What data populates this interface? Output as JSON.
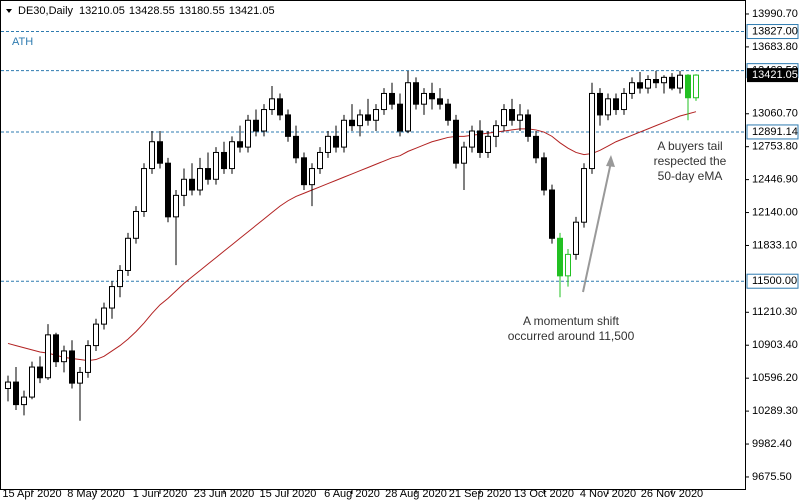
{
  "chart_data": {
    "type": "candlestick",
    "symbol": "DE30,Daily",
    "header_ohlc": [
      13210.05,
      13428.55,
      13180.55,
      13421.05
    ],
    "categories": [
      null,
      null,
      null,
      "15 Apr 2020",
      null,
      null,
      null,
      null,
      null,
      null,
      null,
      "8 May 2020",
      null,
      null,
      null,
      null,
      null,
      null,
      null,
      "1 Jun 2020",
      null,
      null,
      null,
      null,
      null,
      null,
      null,
      "23 Jun 2020",
      null,
      null,
      null,
      null,
      null,
      null,
      null,
      "15 Jul 2020",
      null,
      null,
      null,
      null,
      null,
      null,
      null,
      "6 Aug 2020",
      null,
      null,
      null,
      null,
      null,
      null,
      null,
      "28 Aug 2020",
      null,
      null,
      null,
      null,
      null,
      null,
      null,
      "21 Sep 2020",
      null,
      null,
      null,
      null,
      null,
      null,
      null,
      "13 Oct 2020",
      null,
      null,
      null,
      null,
      null,
      null,
      null,
      "4 Nov 2020",
      null,
      null,
      null,
      null,
      null,
      null,
      null,
      "26 Nov 2020",
      null,
      null,
      null
    ],
    "open": [
      10500,
      10560,
      10350,
      10420,
      10700,
      10600,
      11000,
      10750,
      10850,
      10550,
      10650,
      10900,
      11100,
      11250,
      11450,
      11600,
      11900,
      12150,
      12550,
      12800,
      12600,
      12100,
      12300,
      12450,
      12350,
      12550,
      12450,
      12700,
      12550,
      12800,
      12750,
      13000,
      12900,
      13100,
      13200,
      13050,
      12850,
      12650,
      12400,
      12550,
      12700,
      12850,
      12750,
      13000,
      12950,
      13050,
      13000,
      13100,
      13250,
      13150,
      12900,
      13350,
      13150,
      13250,
      13200,
      13150,
      13000,
      12600,
      12750,
      12900,
      12700,
      12850,
      12950,
      13100,
      13000,
      13050,
      12850,
      12650,
      12350,
      11900,
      11550,
      11750,
      12050,
      12550,
      13250,
      13050,
      13200,
      13100,
      13250,
      13350,
      13300,
      13380,
      13350,
      13400,
      13300,
      13420,
      13210.05
    ],
    "high": [
      10620,
      10700,
      10480,
      10750,
      10800,
      11100,
      11020,
      10900,
      10950,
      10700,
      10950,
      11150,
      11300,
      11500,
      11650,
      11950,
      12200,
      12600,
      12900,
      12900,
      12650,
      12350,
      12550,
      12600,
      12650,
      12700,
      12750,
      12800,
      12850,
      12950,
      13050,
      13100,
      13150,
      13320,
      13250,
      13100,
      12950,
      12700,
      12600,
      12750,
      12900,
      12950,
      13050,
      13150,
      13100,
      13200,
      13150,
      13300,
      13350,
      13250,
      13460,
      13400,
      13300,
      13350,
      13300,
      13200,
      13050,
      12800,
      12950,
      13000,
      12900,
      13000,
      13150,
      13200,
      13150,
      13100,
      12900,
      12700,
      12400,
      11950,
      11800,
      12100,
      12600,
      13350,
      13300,
      13250,
      13250,
      13300,
      13400,
      13450,
      13420,
      13460,
      13420,
      13440,
      13460,
      13430,
      13428.55
    ],
    "low": [
      10380,
      10300,
      10250,
      10400,
      10550,
      10580,
      10700,
      10650,
      10500,
      10200,
      10600,
      10850,
      11050,
      11150,
      11350,
      11550,
      11850,
      12100,
      12500,
      12550,
      12050,
      11650,
      12200,
      12300,
      12300,
      12400,
      12400,
      12500,
      12500,
      12700,
      12700,
      12850,
      12850,
      13050,
      13000,
      12800,
      12600,
      12350,
      12200,
      12500,
      12650,
      12700,
      12700,
      12900,
      12850,
      12950,
      12900,
      13050,
      13100,
      12850,
      12880,
      13100,
      13050,
      13100,
      13100,
      12950,
      12550,
      12350,
      12700,
      12650,
      12650,
      12750,
      12900,
      12950,
      12900,
      12800,
      12600,
      12300,
      11850,
      11350,
      11450,
      11700,
      12000,
      12500,
      12950,
      13000,
      13050,
      13050,
      13200,
      13250,
      13250,
      13300,
      13250,
      13280,
      13250,
      13000,
      13180.55
    ],
    "close": [
      10560,
      10350,
      10420,
      10700,
      10600,
      11000,
      10750,
      10850,
      10550,
      10650,
      10900,
      11100,
      11250,
      11450,
      11600,
      11900,
      12150,
      12550,
      12800,
      12600,
      12100,
      12300,
      12450,
      12350,
      12550,
      12450,
      12700,
      12550,
      12800,
      12750,
      13000,
      12900,
      13100,
      13200,
      13050,
      12850,
      12650,
      12400,
      12550,
      12700,
      12850,
      12750,
      13000,
      12950,
      13050,
      13000,
      13100,
      13250,
      13150,
      12900,
      13350,
      13150,
      13250,
      13200,
      13150,
      13000,
      12600,
      12750,
      12900,
      12700,
      12850,
      12950,
      13100,
      13000,
      13050,
      12850,
      12650,
      12350,
      11900,
      11550,
      11750,
      12050,
      12550,
      13250,
      13050,
      13200,
      13100,
      13250,
      13350,
      13300,
      13380,
      13350,
      13400,
      13300,
      13420,
      13210.05,
      13421.05
    ],
    "ema": {
      "color": "#b22222",
      "values": [
        10920,
        10900,
        10880,
        10860,
        10840,
        10830,
        10810,
        10790,
        10780,
        10770,
        10760,
        10770,
        10800,
        10850,
        10900,
        10960,
        11030,
        11110,
        11200,
        11280,
        11340,
        11410,
        11480,
        11540,
        11600,
        11660,
        11720,
        11780,
        11840,
        11900,
        11960,
        12020,
        12080,
        12140,
        12200,
        12250,
        12290,
        12320,
        12350,
        12380,
        12410,
        12440,
        12470,
        12500,
        12530,
        12560,
        12590,
        12620,
        12650,
        12670,
        12710,
        12740,
        12770,
        12800,
        12820,
        12840,
        12850,
        12850,
        12860,
        12870,
        12880,
        12890,
        12900,
        12910,
        12920,
        12920,
        12910,
        12890,
        12850,
        12790,
        12740,
        12700,
        12680,
        12690,
        12720,
        12760,
        12800,
        12830,
        12860,
        12890,
        12920,
        12950,
        12980,
        13010,
        13040,
        13060,
        13080
      ]
    },
    "highlighted": [
      69,
      70,
      85,
      86
    ],
    "highlight_color": "#22c022",
    "ylim": [
      9554,
      14121
    ],
    "yticks": [
      {
        "value": 13990.7,
        "label": "13990.70"
      },
      {
        "value": 13683.8,
        "label": "13683.80"
      },
      {
        "value": 13060.7,
        "label": "13060.70"
      },
      {
        "value": 12753.8,
        "label": "12753.80"
      },
      {
        "value": 12446.9,
        "label": "12446.90"
      },
      {
        "value": 12140,
        "label": "12140.00"
      },
      {
        "value": 11833.1,
        "label": "11833.10"
      },
      {
        "value": 11210.3,
        "label": "11210.30"
      },
      {
        "value": 10903.4,
        "label": "10903.40"
      },
      {
        "value": 10596.2,
        "label": "10596.20"
      },
      {
        "value": 10289.3,
        "label": "10289.30"
      },
      {
        "value": 9982.4,
        "label": "9982.40"
      },
      {
        "value": 9675.5,
        "label": "9675.50"
      }
    ],
    "levels": [
      {
        "value": 13827,
        "label": "13827.00"
      },
      {
        "value": 13462.52,
        "label": "13462.52"
      },
      {
        "value": 12891.14,
        "label": "12891.14"
      },
      {
        "value": 11500,
        "label": "11500.00"
      }
    ],
    "level_color": "#2e7bb0",
    "last_price": 13421.05,
    "ath_label": "ATH",
    "annotations": [
      {
        "lines": [
          "A buyers tail",
          "respected the",
          "50-day eMA"
        ]
      },
      {
        "lines": [
          "A momentum shift",
          "occurred around 11,500"
        ]
      }
    ]
  }
}
